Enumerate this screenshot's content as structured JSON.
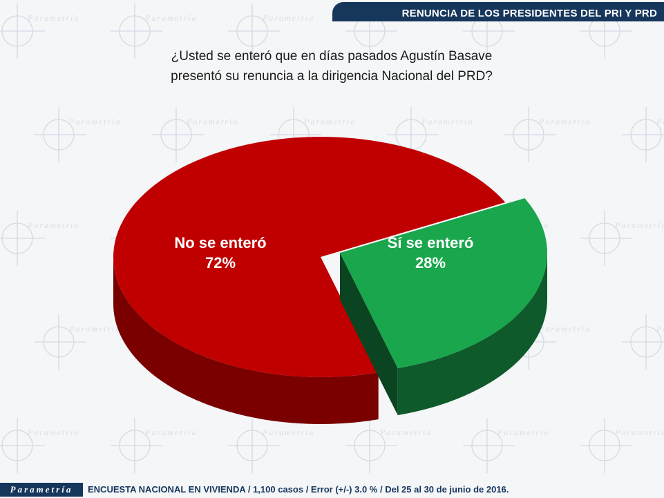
{
  "header": {
    "title": "RENUNCIA DE LOS PRESIDENTES DEL PRI Y PRD"
  },
  "question": {
    "line1": "¿Usted se enteró que en días pasados Agustín Basave",
    "line2": "presentó su renuncia  a la dirigencia Nacional del PRD?"
  },
  "watermark": {
    "text": "Parametría"
  },
  "footer": {
    "brand": "Parametría",
    "note": "ENCUESTA NACIONAL EN VIVIENDA / 1,100 casos / Error (+/-) 3.0 % / Del 25 al 30 de junio de 2016."
  },
  "colors": {
    "header_bg": "#16365c",
    "no_top": "#c00000",
    "no_side": "#7a0000",
    "si_top": "#19a64c",
    "si_side": "#0e5a2a"
  },
  "chart_data": {
    "type": "pie",
    "style": "3d-exploded",
    "labels": [
      "No se enteró",
      "Sí se enteró"
    ],
    "values": [
      72,
      28
    ],
    "value_labels": [
      "72%",
      "28%"
    ]
  }
}
